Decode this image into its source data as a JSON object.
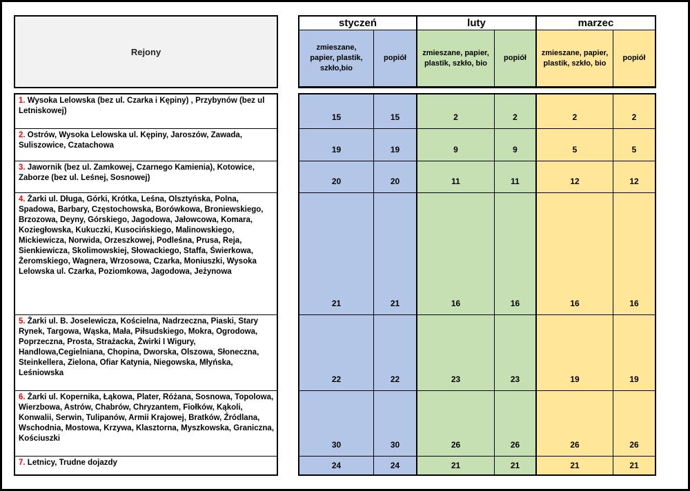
{
  "table": {
    "rejony_label": "Rejony",
    "months": [
      {
        "name": "styczeń",
        "mixed_label": "zmieszane, papier, plastik, szkło,bio",
        "ash_label": "popiół",
        "color": "#b4c6e7"
      },
      {
        "name": "luty",
        "mixed_label": "zmieszane, papier, plastik, szkło, bio",
        "ash_label": "popiół",
        "color": "#c6e0b4"
      },
      {
        "name": "marzec",
        "mixed_label": "zmieszane, papier, plastik, szkło, bio",
        "ash_label": "popiół",
        "color": "#ffe699"
      }
    ],
    "rows": [
      {
        "num": "1.",
        "text": "Wysoka Lelowska (bez ul. Czarka i Kępiny) , Przybynów (bez ul Letniskowej)",
        "values": [
          15,
          15,
          2,
          2,
          2,
          2
        ]
      },
      {
        "num": "2.",
        "text": "Ostrów, Wysoka Lelowska ul. Kępiny, Jaroszów, Zawada, Suliszowice, Czatachowa",
        "values": [
          19,
          19,
          9,
          9,
          5,
          5
        ]
      },
      {
        "num": "3.",
        "text": "Jawornik (bez ul. Zamkowej, Czarnego Kamienia), Kotowice, Zaborze (bez ul. Leśnej, Sosnowej)",
        "values": [
          20,
          20,
          11,
          11,
          12,
          12
        ]
      },
      {
        "num": "4.",
        "text": "Żarki ul. Długa, Górki, Krótka, Leśna, Olsztyńska, Polna, Spadowa, Barbary, Częstochowska, Borówkowa, Broniewskiego, Brzozowa, Deyny, Górskiego, Jagodowa, Jałowcowa, Komara, Koziegłowska, Kukuczki, Kusocińskiego, Malinowskiego, Mickiewicza, Norwida, Orzeszkowej, Podleśna, Prusa, Reja, Sienkiewicza, Skolimowskiej, Słowackiego, Staffa, Świerkowa, Żeromskiego, Wagnera, Wrzosowa, Czarka, Moniuszki, Wysoka Lelowska ul. Czarka, Poziomkowa, Jagodowa, Jeżynowa",
        "values": [
          21,
          21,
          16,
          16,
          16,
          16
        ]
      },
      {
        "num": "5.",
        "text": "Żarki ul. B. Joselewicza, Kościelna, Nadrzeczna, Piaski, Stary Rynek, Targowa, Wąska, Mała, Piłsudskiego, Mokra, Ogrodowa, Poprzeczna, Prosta, Strażacka, Żwirki I Wigury, Handlowa,Cegielniana, Chopina, Dworska, Olszowa, Słoneczna, Steinkellera, Zielona, Ofiar Katynia, Niegowska, Młyńska, Leśniowska",
        "values": [
          22,
          22,
          23,
          23,
          19,
          19
        ]
      },
      {
        "num": "6.",
        "text": "Żarki ul. Kopernika, Łąkowa, Plater, Różana, Sosnowa, Topolowa, Wierzbowa, Astrów, Chabrów, Chryzantem, Fiołków, Kąkoli, Konwalii, Serwin, Tulipanów, Armii Krajowej, Bratków, Źródlana, Wschodnia, Mostowa, Krzywa, Klasztorna, Myszkowska, Graniczna, Kościuszki",
        "values": [
          30,
          30,
          26,
          26,
          26,
          26
        ]
      },
      {
        "num": "7.",
        "text": "Letnicy, Trudne dojazdy",
        "values": [
          24,
          24,
          21,
          21,
          21,
          21
        ]
      }
    ]
  }
}
